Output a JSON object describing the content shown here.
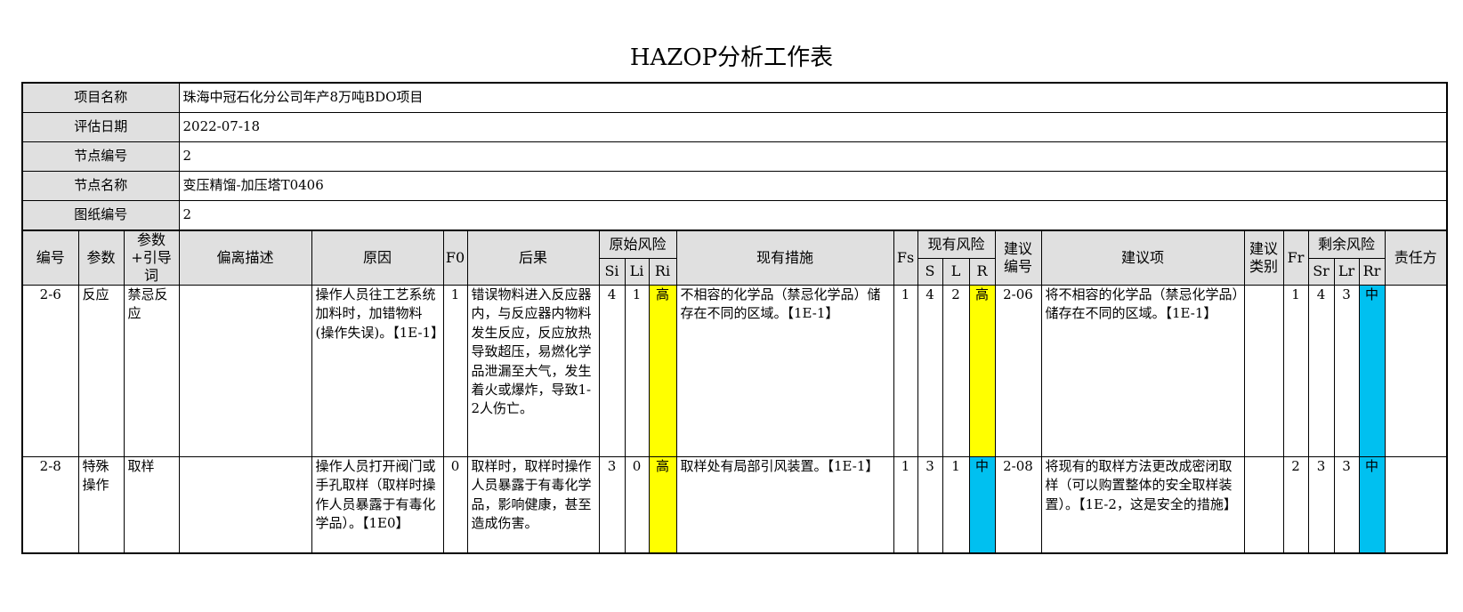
{
  "title": "HAZOP分析工作表",
  "info": [
    {
      "label": "项目名称",
      "value": "珠海中冠石化分公司年产8万吨BDO项目"
    },
    {
      "label": "评估日期",
      "value": "2022-07-18"
    },
    {
      "label": "节点编号",
      "value": "2"
    },
    {
      "label": "节点名称",
      "value": "变压精馏-加压塔T0406"
    },
    {
      "label": "图纸编号",
      "value": "2"
    }
  ],
  "headers": {
    "id": "编号",
    "param": "参数",
    "param_guide": "参数+引导词",
    "deviation": "偏离描述",
    "cause": "原因",
    "f0": "F0",
    "consequence": "后果",
    "orig_risk": "原始风险",
    "si": "Si",
    "li": "Li",
    "ri": "Ri",
    "measures": "现有措施",
    "fs": "Fs",
    "cur_risk": "现有风险",
    "s": "S",
    "l": "L",
    "r": "R",
    "rec_id": "建议编号",
    "rec": "建议项",
    "rec_type": "建议类别",
    "fr": "Fr",
    "res_risk": "剩余风险",
    "sr": "Sr",
    "lr": "Lr",
    "rr": "Rr",
    "owner": "责任方"
  },
  "rows": [
    {
      "id": "2-6",
      "param": "反应",
      "param_guide": "禁忌反应",
      "deviation": "",
      "cause": "操作人员往工艺系统加料时，加错物料(操作失误)。【1E-1】",
      "f0": "1",
      "consequence": "错误物料进入反应器内，与反应器内物料发生反应，反应放热导致超压，易燃化学品泄漏至大气，发生着火或爆炸，导致1-2人伤亡。",
      "si": "4",
      "li": "1",
      "ri": "高",
      "measures": "不相容的化学品（禁忌化学品）储存在不同的区域。【1E-1】",
      "fs": "1",
      "s": "4",
      "l": "2",
      "r": "高",
      "rec_id": "2-06",
      "rec": "将不相容的化学品（禁忌化学品）储存在不同的区域。【1E-1】",
      "rec_type": "",
      "fr": "1",
      "sr": "4",
      "lr": "3",
      "rr": "中",
      "owner": ""
    },
    {
      "id": "2-8",
      "param": "特殊操作",
      "param_guide": "取样",
      "deviation": "",
      "cause": "操作人员打开阀门或手孔取样（取样时操作人员暴露于有毒化学品）。【1E0】",
      "f0": "0",
      "consequence": "取样时，取样时操作人员暴露于有毒化学品，影响健康，甚至造成伤害。",
      "si": "3",
      "li": "0",
      "ri": "高",
      "measures": "取样处有局部引风装置。【1E-1】",
      "fs": "1",
      "s": "3",
      "l": "1",
      "r": "中",
      "rec_id": "2-08",
      "rec": "将现有的取样方法更改成密闭取样（可以购置整体的安全取样装置）。【1E-2，这是安全的措施】",
      "rec_type": "",
      "fr": "2",
      "sr": "3",
      "lr": "3",
      "rr": "中",
      "owner": ""
    }
  ],
  "colors": {
    "high": "#ffff00",
    "medium": "#00c0f0",
    "header_bg": "#e0e0e0"
  }
}
